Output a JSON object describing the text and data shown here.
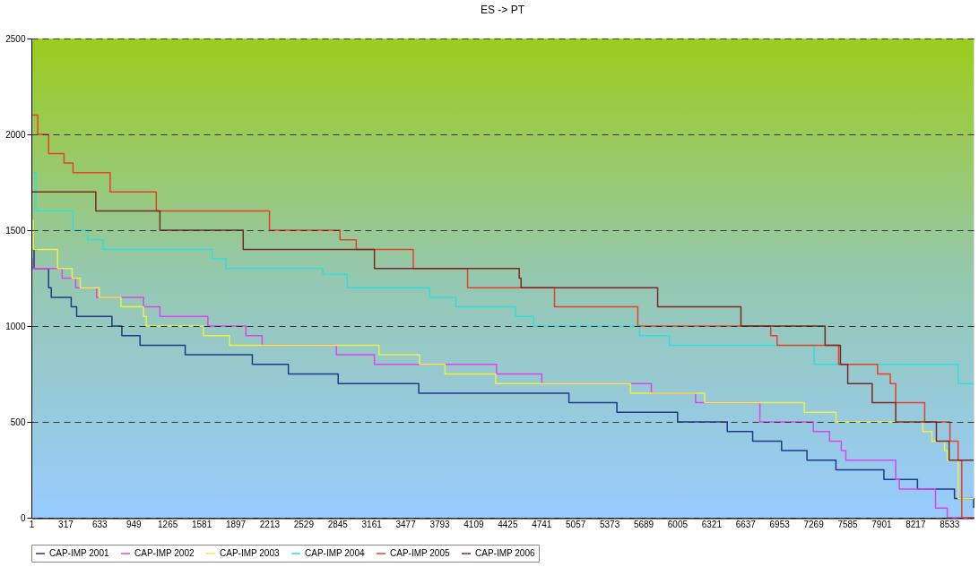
{
  "chart_data": {
    "type": "step",
    "title": "ES -> PT",
    "xlim": [
      1,
      8760
    ],
    "xticks": [
      1,
      317,
      633,
      949,
      1265,
      1581,
      1897,
      2213,
      2529,
      2845,
      3161,
      3477,
      3793,
      4109,
      4425,
      4741,
      5057,
      5373,
      5689,
      6005,
      6321,
      6637,
      6953,
      7269,
      7585,
      7901,
      8217,
      8533
    ],
    "ylim": [
      0,
      2500
    ],
    "yticks": [
      0,
      500,
      1000,
      1500,
      2000,
      2500
    ],
    "grid": "y",
    "legend": "bottom",
    "line_style": "solid",
    "series": [
      {
        "name": "CAP-IMP 2001",
        "color": "#1f3a8a",
        "x": [
          1,
          57,
          26,
          161,
          186,
          371,
          422,
          750,
          842,
          1011,
          1431,
          2055,
          2390,
          2853,
          3602,
          4998,
          5444,
          6008,
          6470,
          6706,
          6975,
          7211,
          7480,
          7926,
          8238,
          8582,
          8760
        ],
        "values": [
          1400,
          1400,
          1300,
          1200,
          1150,
          1100,
          1050,
          1000,
          950,
          900,
          850,
          800,
          750,
          700,
          650,
          600,
          550,
          500,
          450,
          400,
          350,
          300,
          250,
          200,
          150,
          100,
          50
        ]
      },
      {
        "name": "CAP-IMP 2002",
        "color": "#dd44ee",
        "x": [
          1,
          9,
          287,
          413,
          607,
          1044,
          1196,
          1642,
          1995,
          2146,
          2836,
          3190,
          4325,
          4746,
          5764,
          6176,
          6773,
          7270,
          7421,
          7530,
          7572,
          8036,
          8069,
          8406,
          8515,
          8760
        ],
        "values": [
          1350,
          1300,
          1250,
          1200,
          1150,
          1100,
          1050,
          1000,
          950,
          900,
          850,
          800,
          750,
          700,
          650,
          600,
          500,
          450,
          400,
          350,
          300,
          200,
          150,
          50,
          0,
          0
        ]
      },
      {
        "name": "CAP-IMP 2003",
        "color": "#eeee44",
        "x": [
          1,
          18,
          245,
          380,
          455,
          632,
          834,
          1044,
          1069,
          1600,
          1843,
          3232,
          3610,
          3846,
          4317,
          5570,
          6260,
          7186,
          7480,
          8288,
          8372,
          8490,
          8515,
          8616,
          8760
        ],
        "values": [
          1550,
          1400,
          1300,
          1250,
          1200,
          1150,
          1100,
          1050,
          1000,
          950,
          900,
          850,
          800,
          750,
          700,
          650,
          600,
          550,
          500,
          450,
          400,
          350,
          300,
          100,
          100
        ]
      },
      {
        "name": "CAP-IMP 2004",
        "color": "#33dddd",
        "x": [
          1,
          43,
          388,
          523,
          666,
          1684,
          1810,
          2710,
          2937,
          3703,
          3947,
          4502,
          4670,
          5654,
          5932,
          7278,
          8616,
          8760
        ],
        "values": [
          1800,
          1600,
          1500,
          1450,
          1400,
          1350,
          1300,
          1270,
          1200,
          1150,
          1100,
          1050,
          1000,
          950,
          900,
          800,
          700,
          700
        ]
      },
      {
        "name": "CAP-IMP 2005",
        "color": "#e8402a",
        "x": [
          1,
          60,
          161,
          304,
          388,
          733,
          1162,
          2214,
          2870,
          3021,
          3551,
          4056,
          4864,
          5638,
          6874,
          6933,
          7505,
          7867,
          7985,
          8036,
          8305,
          8540,
          8616,
          8650,
          8760
        ],
        "values": [
          2100,
          2000,
          1900,
          1850,
          1800,
          1700,
          1600,
          1500,
          1450,
          1400,
          1300,
          1200,
          1100,
          1000,
          950,
          900,
          800,
          750,
          700,
          600,
          500,
          400,
          300,
          0,
          0
        ]
      },
      {
        "name": "CAP-IMP 2006",
        "color": "#7a2a22",
        "x": [
          1,
          600,
          1196,
          1970,
          3190,
          4536,
          4553,
          5823,
          6597,
          7379,
          7522,
          7590,
          7817,
          8036,
          8414,
          8532,
          8760
        ],
        "values": [
          1700,
          1600,
          1500,
          1400,
          1300,
          1250,
          1200,
          1100,
          1000,
          900,
          800,
          700,
          600,
          500,
          400,
          300,
          300
        ]
      }
    ]
  }
}
